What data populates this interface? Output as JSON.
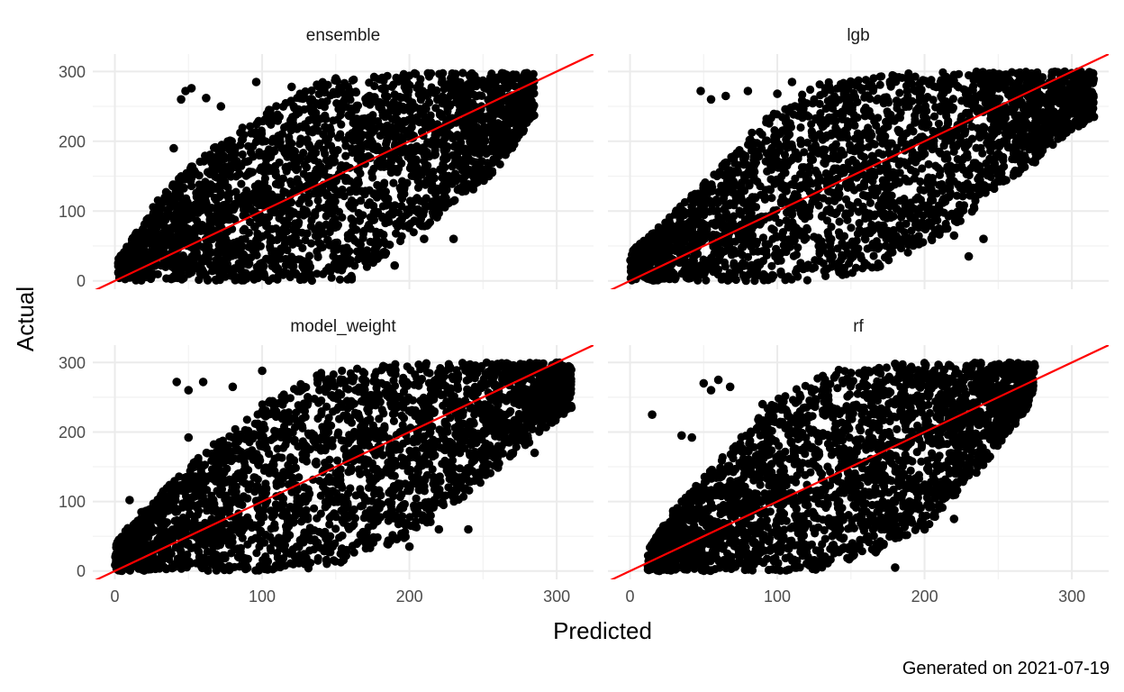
{
  "chart_data": {
    "type": "scatter",
    "xlabel": "Predicted",
    "ylabel": "Actual",
    "caption": "Generated on 2021-07-19",
    "xlim": [
      -15,
      325
    ],
    "ylim": [
      -12,
      325
    ],
    "x_ticks": [
      0,
      100,
      200,
      300
    ],
    "y_ticks": [
      0,
      100,
      200,
      300
    ],
    "x_tick_labels": [
      "0",
      "100",
      "200",
      "300"
    ],
    "y_tick_labels": [
      "0",
      "100",
      "200",
      "300"
    ],
    "grid": true,
    "reference_line": {
      "slope": 1,
      "intercept": 0,
      "color": "#ff0000"
    },
    "point_color": "#000000",
    "facets": [
      {
        "name": "ensemble",
        "pred_range": [
          2,
          285
        ],
        "band_lower": [
          [
            2,
            0
          ],
          [
            60,
            0
          ],
          [
            120,
            0
          ],
          [
            160,
            0
          ],
          [
            180,
            30
          ],
          [
            220,
            90
          ],
          [
            260,
            160
          ],
          [
            285,
            235
          ]
        ],
        "band_upper": [
          [
            2,
            30
          ],
          [
            30,
            120
          ],
          [
            60,
            180
          ],
          [
            100,
            240
          ],
          [
            140,
            285
          ],
          [
            200,
            298
          ],
          [
            285,
            298
          ]
        ],
        "outliers": [
          [
            48,
            272
          ],
          [
            52,
            276
          ],
          [
            45,
            260
          ],
          [
            62,
            262
          ],
          [
            72,
            250
          ],
          [
            96,
            285
          ],
          [
            120,
            278
          ],
          [
            150,
            290
          ],
          [
            210,
            60
          ],
          [
            230,
            60
          ],
          [
            190,
            22
          ],
          [
            250,
            235
          ],
          [
            270,
            238
          ],
          [
            40,
            190
          ]
        ]
      },
      {
        "name": "lgb",
        "pred_range": [
          0,
          315
        ],
        "band_lower": [
          [
            0,
            0
          ],
          [
            70,
            0
          ],
          [
            130,
            0
          ],
          [
            170,
            20
          ],
          [
            210,
            60
          ],
          [
            250,
            130
          ],
          [
            290,
            200
          ],
          [
            315,
            235
          ]
        ],
        "band_upper": [
          [
            0,
            40
          ],
          [
            20,
            80
          ],
          [
            60,
            160
          ],
          [
            90,
            230
          ],
          [
            130,
            285
          ],
          [
            200,
            300
          ],
          [
            300,
            300
          ]
        ],
        "outliers": [
          [
            48,
            272
          ],
          [
            55,
            260
          ],
          [
            65,
            265
          ],
          [
            80,
            272
          ],
          [
            100,
            268
          ],
          [
            110,
            285
          ],
          [
            300,
            240
          ],
          [
            315,
            235
          ],
          [
            310,
            275
          ],
          [
            220,
            65
          ],
          [
            240,
            60
          ],
          [
            230,
            35
          ],
          [
            180,
            60
          ],
          [
            275,
            170
          ],
          [
            260,
            275
          ]
        ]
      },
      {
        "name": "model_weight",
        "pred_range": [
          0,
          310
        ],
        "band_lower": [
          [
            0,
            0
          ],
          [
            70,
            0
          ],
          [
            130,
            0
          ],
          [
            170,
            20
          ],
          [
            210,
            60
          ],
          [
            250,
            130
          ],
          [
            290,
            200
          ],
          [
            310,
            235
          ]
        ],
        "band_upper": [
          [
            0,
            40
          ],
          [
            20,
            90
          ],
          [
            60,
            170
          ],
          [
            100,
            240
          ],
          [
            140,
            285
          ],
          [
            200,
            300
          ],
          [
            300,
            300
          ]
        ],
        "outliers": [
          [
            42,
            272
          ],
          [
            50,
            260
          ],
          [
            60,
            272
          ],
          [
            80,
            265
          ],
          [
            100,
            288
          ],
          [
            305,
            242
          ],
          [
            310,
            235
          ],
          [
            285,
            170
          ],
          [
            250,
            160
          ],
          [
            220,
            60
          ],
          [
            240,
            60
          ],
          [
            200,
            35
          ],
          [
            50,
            192
          ],
          [
            10,
            102
          ]
        ]
      },
      {
        "name": "rf",
        "pred_range": [
          12,
          275
        ],
        "band_lower": [
          [
            12,
            0
          ],
          [
            70,
            0
          ],
          [
            130,
            0
          ],
          [
            160,
            20
          ],
          [
            200,
            60
          ],
          [
            240,
            150
          ],
          [
            270,
            235
          ],
          [
            275,
            260
          ]
        ],
        "band_upper": [
          [
            12,
            30
          ],
          [
            30,
            90
          ],
          [
            70,
            180
          ],
          [
            100,
            250
          ],
          [
            140,
            290
          ],
          [
            200,
            300
          ],
          [
            275,
            300
          ]
        ],
        "outliers": [
          [
            15,
            225
          ],
          [
            50,
            270
          ],
          [
            55,
            260
          ],
          [
            60,
            275
          ],
          [
            68,
            265
          ],
          [
            90,
            240
          ],
          [
            150,
            285
          ],
          [
            180,
            298
          ],
          [
            165,
            60
          ],
          [
            150,
            20
          ],
          [
            200,
            60
          ],
          [
            220,
            75
          ],
          [
            180,
            5
          ],
          [
            35,
            195
          ],
          [
            42,
            192
          ]
        ]
      }
    ]
  }
}
